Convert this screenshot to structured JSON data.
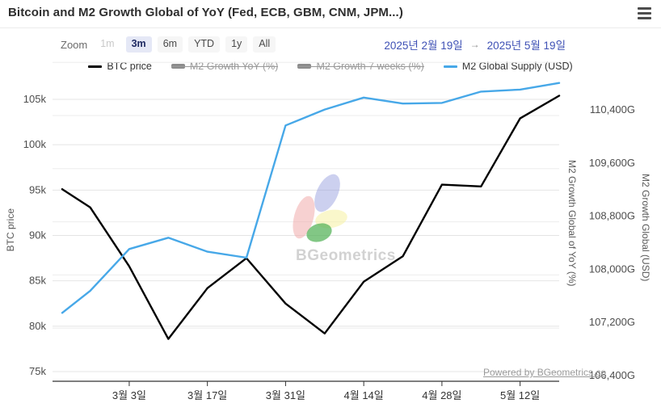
{
  "header": {
    "title": "Bitcoin and M2 Growth Global of YoY (Fed, ECB, GBM, CNM, JPM...)"
  },
  "controls": {
    "zoom_label": "Zoom",
    "buttons": [
      {
        "label": "1m",
        "state": "disabled"
      },
      {
        "label": "3m",
        "state": "selected"
      },
      {
        "label": "6m",
        "state": "normal"
      },
      {
        "label": "YTD",
        "state": "normal"
      },
      {
        "label": "1y",
        "state": "normal"
      },
      {
        "label": "All",
        "state": "normal"
      }
    ],
    "date_range": {
      "from": "2025년 2월 19일",
      "arrow": "→",
      "to": "2025년 5월 19일"
    }
  },
  "legend": [
    {
      "label": "BTC price",
      "marker": "line",
      "color": "#000000",
      "enabled": true
    },
    {
      "label": "M2 Growth YoY (%)",
      "marker": "bar",
      "color": "#8c8c8c",
      "enabled": false
    },
    {
      "label": "M2 Growth 7 weeks (%)",
      "marker": "bar",
      "color": "#8c8c8c",
      "enabled": false
    },
    {
      "label": "M2 Global Supply (USD)",
      "marker": "line",
      "color": "#47a8e8",
      "enabled": true
    }
  ],
  "watermark": {
    "text": "BGeometrics"
  },
  "credit": "Powered by BGeometrics.co",
  "chart_data": {
    "type": "line",
    "x": [
      "2025-02-19",
      "2025-02-24",
      "2025-03-03",
      "2025-03-10",
      "2025-03-17",
      "2025-03-24",
      "2025-03-31",
      "2025-04-07",
      "2025-04-14",
      "2025-04-21",
      "2025-04-28",
      "2025-05-05",
      "2025-05-12",
      "2025-05-19"
    ],
    "x_day_offsets": [
      0,
      5,
      12,
      19,
      26,
      33,
      40,
      47,
      54,
      61,
      68,
      75,
      82,
      89
    ],
    "x_total_days": 89,
    "xticks": [
      {
        "label": "3월 3일",
        "day_offset": 12
      },
      {
        "label": "3월 17일",
        "day_offset": 26
      },
      {
        "label": "3월 31일",
        "day_offset": 40
      },
      {
        "label": "4월 14일",
        "day_offset": 54
      },
      {
        "label": "4월 28일",
        "day_offset": 68
      },
      {
        "label": "5월 12일",
        "day_offset": 82
      }
    ],
    "series": [
      {
        "name": "BTC price",
        "axis": "left",
        "color": "#000000",
        "values": [
          95100,
          93100,
          86600,
          78600,
          84200,
          87500,
          82500,
          79200,
          84900,
          87700,
          95600,
          95400,
          102900,
          105400
        ]
      },
      {
        "name": "M2 Global Supply (USD)",
        "axis": "right",
        "color": "#47a8e8",
        "values": [
          107430,
          107760,
          108390,
          108560,
          108350,
          108260,
          110250,
          110490,
          110670,
          110580,
          110590,
          110760,
          110790,
          110890
        ]
      }
    ],
    "left_axis": {
      "title": "BTC price",
      "ticks": [
        105000,
        100000,
        95000,
        90000,
        85000,
        80000,
        75000
      ],
      "tick_labels": [
        "105k",
        "100k",
        "95k",
        "90k",
        "85k",
        "80k",
        "75k"
      ]
    },
    "right_axis": {
      "title_inner": "M2 Growth Global of YoY (%)",
      "title_outer": "M2 Growth Global (USD)",
      "ticks": [
        110400,
        109600,
        108800,
        108000,
        107200,
        106400
      ],
      "tick_labels": [
        "110,400G",
        "109,600G",
        "108,800G",
        "108,000G",
        "107,200G",
        "106,400G"
      ]
    },
    "grid": true,
    "legend_position": "top"
  }
}
